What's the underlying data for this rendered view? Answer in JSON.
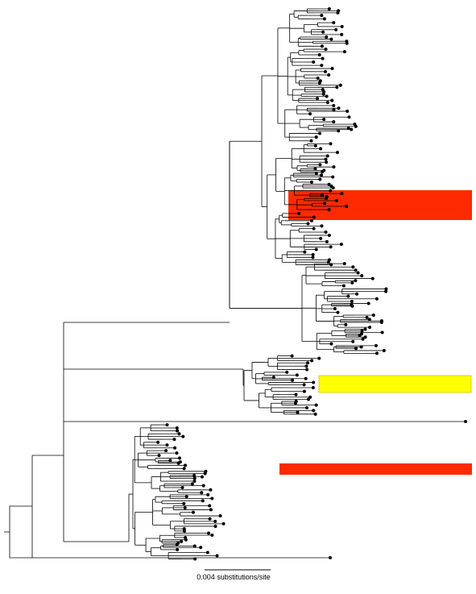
{
  "figure": {
    "scale_bar_label": "0.004 substitutions/site",
    "scale_bar_value": 0.004
  },
  "highlight_colors": {
    "red": "#ff2a00",
    "yellow": "#ffff00",
    "yellow_border": "#d4c400"
  },
  "tree_color": "#000000",
  "tip_marker": "filled-circle"
}
